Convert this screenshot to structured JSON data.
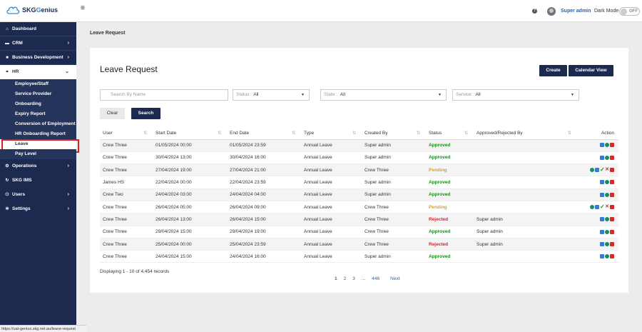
{
  "header": {
    "logo_prefix": "SKG",
    "logo_suffix": "enius",
    "logo_g": "G",
    "user_name": "Super admin",
    "dark_mode_label": "Dark Mode",
    "toggle_text": "OFF"
  },
  "sidebar": {
    "items": {
      "dashboard": "Dashboard",
      "crm": "CRM",
      "bd": "Business Development",
      "hr": "HR",
      "operations": "Operations",
      "ims": "SKG IMS",
      "users": "Users",
      "settings": "Settings"
    },
    "hr_sub": [
      "Employee/Staff",
      "Service Provider",
      "Onboarding",
      "Expiry Report",
      "Conversion of Employment",
      "HR Onboarding Report",
      "Leave",
      "Pay Level"
    ]
  },
  "status_url": "https://uat-genius.skg.net.au/leave-request",
  "breadcrumb": "Leave Request",
  "page_title": "Leave Request",
  "buttons": {
    "create": "Create",
    "calendar": "Calendar View",
    "clear": "Clear",
    "search": "Search"
  },
  "filters": {
    "search_placeholder": "Search By Name",
    "status_label": "Status:",
    "status_value": "All",
    "state_label": "State :",
    "state_value": "All",
    "service_label": "Service:",
    "service_value": "All"
  },
  "table": {
    "headers": [
      "User",
      "Start Date",
      "End Date",
      "Type",
      "Created By",
      "Status",
      "Approved/Rejected By",
      "Action"
    ],
    "rows": [
      {
        "user": "Crew Three",
        "start": "01/05/2024 00:00",
        "end": "01/05/2024 23:59",
        "type": "Annual Leave",
        "created": "Super admin",
        "status": "Approved",
        "by": ""
      },
      {
        "user": "Crew Three",
        "start": "30/04/2024 13:00",
        "end": "30/04/2024 16:00",
        "type": "Annual Leave",
        "created": "Super admin",
        "status": "Approved",
        "by": ""
      },
      {
        "user": "Crew Three",
        "start": "27/04/2024 19:00",
        "end": "27/04/2024 21:00",
        "type": "Annual Leave",
        "created": "Crew Three",
        "status": "Pending",
        "by": ""
      },
      {
        "user": "James HS",
        "start": "22/04/2024 00:00",
        "end": "22/04/2024 23:59",
        "type": "Annual Leave",
        "created": "Super admin",
        "status": "Approved",
        "by": ""
      },
      {
        "user": "Crew Two",
        "start": "24/04/2024 03:00",
        "end": "24/04/2024 04:00",
        "type": "Annual Leave",
        "created": "Super admin",
        "status": "Approved",
        "by": ""
      },
      {
        "user": "Crew Three",
        "start": "26/04/2024 05:00",
        "end": "26/04/2024 09:00",
        "type": "Annual Leave",
        "created": "Crew Three",
        "status": "Pending",
        "by": ""
      },
      {
        "user": "Crew Three",
        "start": "26/04/2024 13:00",
        "end": "26/04/2024 15:00",
        "type": "Annual Leave",
        "created": "Crew Three",
        "status": "Rejected",
        "by": "Super admin"
      },
      {
        "user": "Crew Three",
        "start": "29/04/2024 15:00",
        "end": "29/04/2024 19:00",
        "type": "Annual Leave",
        "created": "Crew Three",
        "status": "Approved",
        "by": "Super admin"
      },
      {
        "user": "Crew Three",
        "start": "25/04/2024 00:00",
        "end": "25/04/2024 23:59",
        "type": "Annual Leave",
        "created": "Crew Three",
        "status": "Rejected",
        "by": "Super admin"
      },
      {
        "user": "Crew Three",
        "start": "24/04/2024 15:00",
        "end": "24/04/2024 16:00",
        "type": "Annual Leave",
        "created": "Super admin",
        "status": "Approved",
        "by": ""
      }
    ]
  },
  "records_text": "Displaying 1 - 10 of 4,454 records",
  "pagination": {
    "pages": [
      "1",
      "2",
      "3"
    ],
    "ellipsis": "...",
    "last": "446",
    "next": "Next"
  },
  "colors": {
    "sidebar": "#1c2a4f",
    "approved": "#1a8a1a",
    "pending": "#e0a020",
    "rejected": "#d02a2a",
    "link": "#2a64a8"
  }
}
